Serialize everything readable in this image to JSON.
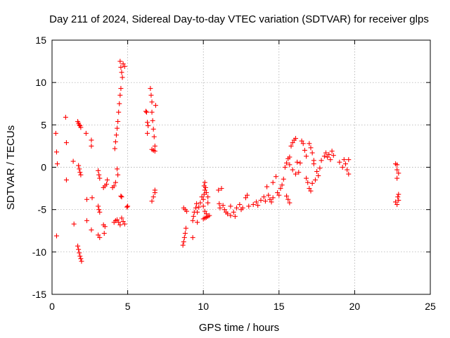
{
  "chart_data": {
    "type": "scatter",
    "title": "Day 211 of 2024, Sidereal Day-to-day VTEC variation (SDTVAR) for receiver glps",
    "xlabel": "GPS time / hours",
    "ylabel": "SDTVAR / TECUs",
    "xlim": [
      0,
      25
    ],
    "ylim": [
      -15,
      15
    ],
    "xticks": [
      0,
      5,
      10,
      15,
      20,
      25
    ],
    "yticks": [
      -15,
      -10,
      -5,
      0,
      5,
      10,
      15
    ],
    "grid": true,
    "marker": "+",
    "color": "#ff0000",
    "series": [
      {
        "name": "SDTVAR",
        "points": [
          [
            0.25,
            4.0
          ],
          [
            0.3,
            1.8
          ],
          [
            0.35,
            0.4
          ],
          [
            0.3,
            -8.1
          ],
          [
            0.9,
            5.9
          ],
          [
            0.95,
            2.9
          ],
          [
            0.95,
            -1.5
          ],
          [
            1.4,
            0.7
          ],
          [
            1.45,
            -6.7
          ],
          [
            1.7,
            5.4
          ],
          [
            1.75,
            5.2
          ],
          [
            1.8,
            5.0
          ],
          [
            1.85,
            4.9
          ],
          [
            1.9,
            4.7
          ],
          [
            1.75,
            0.2
          ],
          [
            1.8,
            -0.2
          ],
          [
            1.85,
            -0.6
          ],
          [
            1.9,
            -0.9
          ],
          [
            1.7,
            -9.3
          ],
          [
            1.75,
            -9.7
          ],
          [
            1.8,
            -10.1
          ],
          [
            1.85,
            -10.5
          ],
          [
            1.9,
            -10.8
          ],
          [
            1.95,
            -11.1
          ],
          [
            2.25,
            4.0
          ],
          [
            2.3,
            -3.8
          ],
          [
            2.3,
            -6.3
          ],
          [
            2.6,
            3.2
          ],
          [
            2.6,
            2.5
          ],
          [
            2.65,
            -3.6
          ],
          [
            2.6,
            -7.4
          ],
          [
            3.05,
            -0.4
          ],
          [
            3.1,
            -0.9
          ],
          [
            3.15,
            -1.3
          ],
          [
            3.05,
            -4.6
          ],
          [
            3.1,
            -5.0
          ],
          [
            3.15,
            -5.3
          ],
          [
            3.05,
            -8.0
          ],
          [
            3.15,
            -8.3
          ],
          [
            3.4,
            -2.4
          ],
          [
            3.5,
            -2.2
          ],
          [
            3.6,
            -2.0
          ],
          [
            3.65,
            -1.5
          ],
          [
            3.4,
            -6.8
          ],
          [
            3.5,
            -7.0
          ],
          [
            3.45,
            -7.8
          ],
          [
            4.0,
            -2.4
          ],
          [
            4.1,
            -2.2
          ],
          [
            4.2,
            -1.8
          ],
          [
            4.1,
            -6.5
          ],
          [
            4.2,
            -6.3
          ],
          [
            4.3,
            -6.2
          ],
          [
            4.4,
            -6.5
          ],
          [
            4.5,
            -6.8
          ],
          [
            4.15,
            2.2
          ],
          [
            4.2,
            3.0
          ],
          [
            4.25,
            3.8
          ],
          [
            4.3,
            4.6
          ],
          [
            4.35,
            5.4
          ],
          [
            4.4,
            6.5
          ],
          [
            4.45,
            7.5
          ],
          [
            4.5,
            8.5
          ],
          [
            4.55,
            9.3
          ],
          [
            4.3,
            -0.2
          ],
          [
            4.35,
            -0.9
          ],
          [
            4.55,
            -3.4
          ],
          [
            4.6,
            -3.5
          ],
          [
            4.5,
            12.5
          ],
          [
            4.55,
            11.8
          ],
          [
            4.6,
            11.2
          ],
          [
            4.65,
            10.6
          ],
          [
            4.7,
            12.2
          ],
          [
            4.8,
            11.9
          ],
          [
            4.6,
            -6.0
          ],
          [
            4.7,
            -6.4
          ],
          [
            4.8,
            -6.7
          ],
          [
            5.0,
            -4.6
          ],
          [
            4.95,
            -4.7
          ],
          [
            6.2,
            6.6
          ],
          [
            6.25,
            6.5
          ],
          [
            6.3,
            5.3
          ],
          [
            6.35,
            4.9
          ],
          [
            6.3,
            4.0
          ],
          [
            6.5,
            9.3
          ],
          [
            6.55,
            8.5
          ],
          [
            6.6,
            7.7
          ],
          [
            6.6,
            6.5
          ],
          [
            6.65,
            5.5
          ],
          [
            6.7,
            4.5
          ],
          [
            6.75,
            3.6
          ],
          [
            6.8,
            2.5
          ],
          [
            6.85,
            7.3
          ],
          [
            6.6,
            2.1
          ],
          [
            6.7,
            2.0
          ],
          [
            6.8,
            1.9
          ],
          [
            6.6,
            -4.0
          ],
          [
            6.7,
            -3.5
          ],
          [
            6.8,
            -3.0
          ],
          [
            6.8,
            -2.7
          ],
          [
            8.65,
            -9.2
          ],
          [
            8.7,
            -8.8
          ],
          [
            8.75,
            -8.3
          ],
          [
            8.8,
            -7.8
          ],
          [
            8.85,
            -7.2
          ],
          [
            8.7,
            -4.8
          ],
          [
            8.8,
            -5.0
          ],
          [
            8.9,
            -5.2
          ],
          [
            9.3,
            -8.3
          ],
          [
            9.3,
            -6.3
          ],
          [
            9.35,
            -5.8
          ],
          [
            9.4,
            -5.3
          ],
          [
            9.5,
            -4.8
          ],
          [
            9.55,
            -4.3
          ],
          [
            9.6,
            -5.3
          ],
          [
            9.7,
            -4.7
          ],
          [
            9.8,
            -4.2
          ],
          [
            9.9,
            -3.5
          ],
          [
            9.6,
            -6.5
          ],
          [
            10.0,
            -3.8
          ],
          [
            10.05,
            -3.2
          ],
          [
            10.1,
            -2.7
          ],
          [
            10.05,
            -2.2
          ],
          [
            10.1,
            -1.8
          ],
          [
            10.15,
            -2.4
          ],
          [
            10.2,
            -3.0
          ],
          [
            10.3,
            -3.5
          ],
          [
            10.3,
            -4.2
          ],
          [
            10.0,
            -4.6
          ],
          [
            10.1,
            -5.2
          ],
          [
            10.2,
            -5.5
          ],
          [
            10.0,
            -6.1
          ],
          [
            10.1,
            -6.0
          ],
          [
            10.2,
            -5.9
          ],
          [
            10.3,
            -5.8
          ],
          [
            10.4,
            -5.7
          ],
          [
            11.0,
            -2.7
          ],
          [
            11.2,
            -2.5
          ],
          [
            11.05,
            -4.3
          ],
          [
            11.1,
            -4.8
          ],
          [
            11.3,
            -4.5
          ],
          [
            11.4,
            -5.0
          ],
          [
            11.5,
            -5.3
          ],
          [
            11.6,
            -5.5
          ],
          [
            11.8,
            -5.7
          ],
          [
            12.0,
            -5.3
          ],
          [
            12.1,
            -5.8
          ],
          [
            11.8,
            -4.6
          ],
          [
            12.2,
            -4.8
          ],
          [
            12.4,
            -4.4
          ],
          [
            12.5,
            -5.0
          ],
          [
            12.6,
            -4.8
          ],
          [
            12.8,
            -3.6
          ],
          [
            12.9,
            -3.3
          ],
          [
            13.0,
            -4.6
          ],
          [
            13.3,
            -4.4
          ],
          [
            13.5,
            -4.1
          ],
          [
            13.6,
            -4.5
          ],
          [
            13.8,
            -3.9
          ],
          [
            14.0,
            -3.5
          ],
          [
            14.1,
            -4.0
          ],
          [
            14.2,
            -2.3
          ],
          [
            14.3,
            -3.3
          ],
          [
            14.4,
            -3.8
          ],
          [
            14.5,
            -4.1
          ],
          [
            14.6,
            -3.6
          ],
          [
            14.6,
            -1.8
          ],
          [
            14.8,
            -1.1
          ],
          [
            14.9,
            -3.0
          ],
          [
            15.0,
            -3.3
          ],
          [
            15.1,
            -2.5
          ],
          [
            15.2,
            -2.1
          ],
          [
            15.3,
            -1.4
          ],
          [
            15.4,
            0.0
          ],
          [
            15.5,
            0.5
          ],
          [
            15.6,
            1.0
          ],
          [
            15.7,
            0.3
          ],
          [
            15.5,
            -3.4
          ],
          [
            15.6,
            -3.8
          ],
          [
            15.7,
            -4.2
          ],
          [
            15.7,
            1.2
          ],
          [
            15.8,
            2.5
          ],
          [
            15.9,
            2.9
          ],
          [
            16.0,
            3.2
          ],
          [
            16.1,
            3.4
          ],
          [
            15.9,
            -0.3
          ],
          [
            16.1,
            -0.8
          ],
          [
            16.2,
            0.6
          ],
          [
            16.3,
            -0.6
          ],
          [
            16.4,
            0.5
          ],
          [
            16.5,
            3.1
          ],
          [
            16.6,
            2.8
          ],
          [
            16.7,
            2.0
          ],
          [
            16.8,
            1.3
          ],
          [
            16.8,
            -1.3
          ],
          [
            16.9,
            -1.8
          ],
          [
            17.0,
            2.8
          ],
          [
            17.1,
            2.3
          ],
          [
            17.2,
            1.7
          ],
          [
            17.3,
            0.8
          ],
          [
            17.2,
            -1.9
          ],
          [
            17.4,
            -1.5
          ],
          [
            17.0,
            -2.5
          ],
          [
            17.1,
            -2.8
          ],
          [
            17.3,
            0.4
          ],
          [
            17.5,
            -0.5
          ],
          [
            17.6,
            -1.0
          ],
          [
            17.7,
            -0.1
          ],
          [
            17.8,
            0.8
          ],
          [
            18.0,
            1.3
          ],
          [
            18.1,
            1.7
          ],
          [
            18.2,
            1.2
          ],
          [
            18.3,
            1.5
          ],
          [
            18.5,
            1.9
          ],
          [
            18.4,
            0.9
          ],
          [
            18.6,
            1.4
          ],
          [
            19.0,
            0.6
          ],
          [
            19.2,
            0.0
          ],
          [
            19.3,
            0.9
          ],
          [
            19.4,
            0.4
          ],
          [
            19.5,
            -0.3
          ],
          [
            19.6,
            -0.8
          ],
          [
            19.6,
            0.9
          ],
          [
            22.7,
            0.4
          ],
          [
            22.8,
            0.3
          ],
          [
            22.8,
            -0.3
          ],
          [
            22.9,
            -0.7
          ],
          [
            22.8,
            -1.3
          ],
          [
            22.85,
            -3.5
          ],
          [
            22.9,
            -3.9
          ],
          [
            22.7,
            -4.1
          ],
          [
            22.8,
            -4.4
          ],
          [
            22.9,
            -3.2
          ]
        ]
      }
    ]
  }
}
